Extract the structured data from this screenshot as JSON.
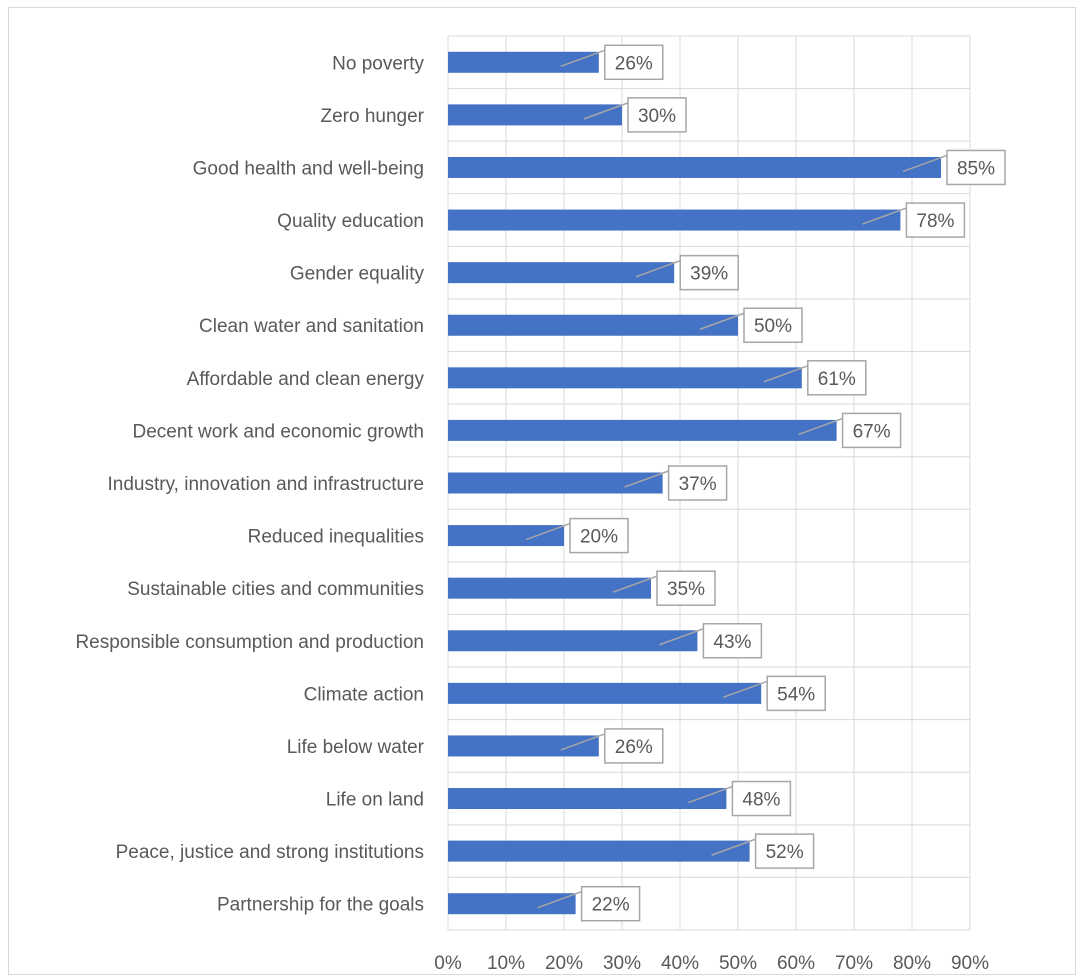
{
  "chart_data": {
    "type": "bar",
    "orientation": "horizontal",
    "categories": [
      "No poverty",
      "Zero hunger",
      "Good health and well-being",
      "Quality education",
      "Gender equality",
      "Clean water and sanitation",
      "Affordable and clean energy",
      "Decent work and economic growth",
      "Industry, innovation and infrastructure",
      "Reduced inequalities",
      "Sustainable cities and communities",
      "Responsible consumption and production",
      "Climate action",
      "Life below water",
      "Life on land",
      "Peace, justice and strong institutions",
      "Partnership for the goals"
    ],
    "values": [
      26,
      30,
      85,
      78,
      39,
      50,
      61,
      67,
      37,
      20,
      35,
      43,
      54,
      26,
      48,
      52,
      22
    ],
    "data_labels": [
      "26%",
      "30%",
      "85%",
      "78%",
      "39%",
      "50%",
      "61%",
      "67%",
      "37%",
      "20%",
      "35%",
      "43%",
      "54%",
      "26%",
      "48%",
      "52%",
      "22%"
    ],
    "xlim": [
      0,
      90
    ],
    "x_ticks": [
      "0%",
      "10%",
      "20%",
      "30%",
      "40%",
      "50%",
      "60%",
      "70%",
      "80%",
      "90%"
    ],
    "title": "",
    "xlabel": "",
    "ylabel": "",
    "grid": true,
    "legend": "none",
    "colors": {
      "bar": "#4472c4",
      "grid": "#d9d9d9",
      "text": "#595959",
      "label_border": "#a6a6a6",
      "leader": "#a6a6a6"
    }
  }
}
